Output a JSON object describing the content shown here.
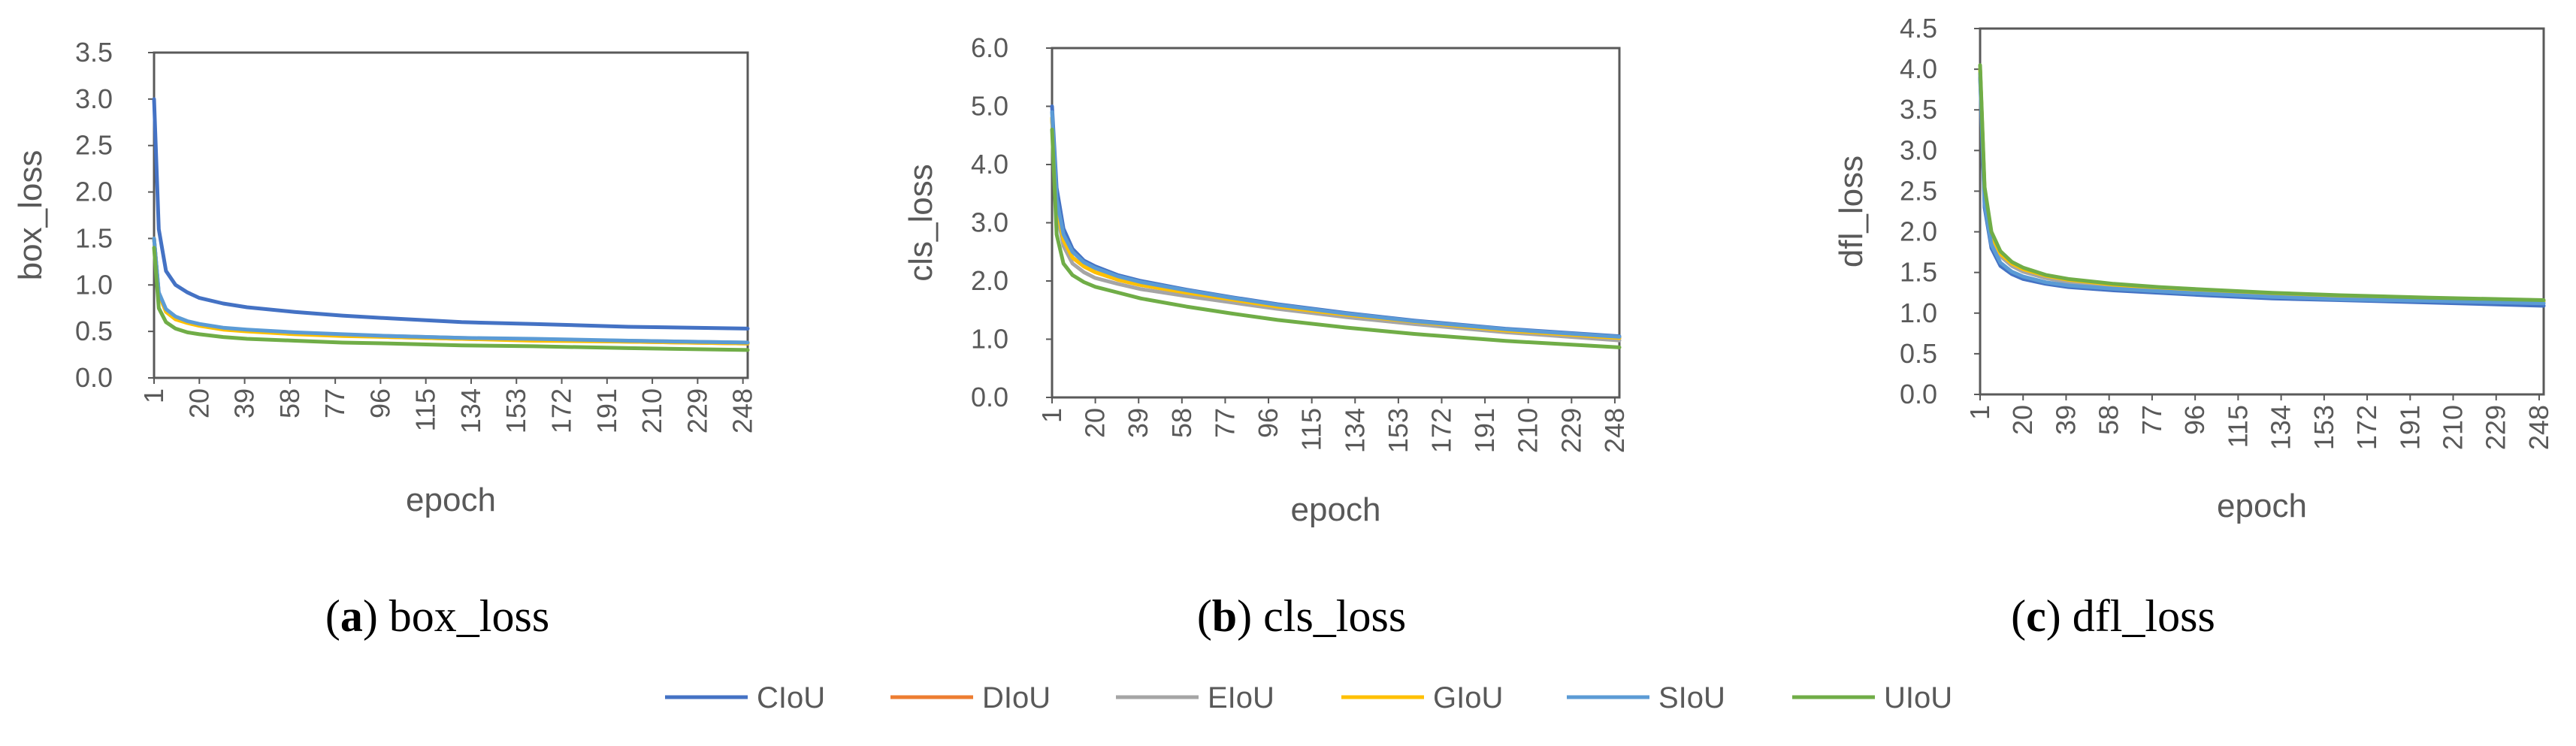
{
  "chart_data": [
    {
      "type": "line",
      "caption_letter": "a",
      "caption_text": "box_loss",
      "xlabel": "epoch",
      "ylabel": "box_loss",
      "ylim": [
        0,
        3.5
      ],
      "yticks": [
        "0.0",
        "0.5",
        "1.0",
        "1.5",
        "2.0",
        "2.5",
        "3.0",
        "3.5"
      ],
      "xlim": [
        1,
        250
      ],
      "xticks": [
        1,
        20,
        39,
        58,
        77,
        96,
        115,
        134,
        153,
        172,
        191,
        210,
        229,
        248
      ],
      "grid": false,
      "series": [
        {
          "name": "CIoU",
          "color": "#4472C4",
          "x": [
            1,
            3,
            6,
            10,
            15,
            20,
            30,
            40,
            60,
            80,
            100,
            130,
            160,
            200,
            250
          ],
          "values": [
            3.0,
            1.6,
            1.15,
            1.0,
            0.92,
            0.86,
            0.8,
            0.76,
            0.71,
            0.67,
            0.64,
            0.6,
            0.58,
            0.55,
            0.53
          ]
        },
        {
          "name": "DIoU",
          "color": "#ED7D31",
          "x": [
            1,
            3,
            6,
            10,
            15,
            20,
            30,
            40,
            60,
            80,
            100,
            130,
            160,
            200,
            250
          ],
          "values": [
            1.5,
            0.9,
            0.72,
            0.64,
            0.6,
            0.57,
            0.53,
            0.51,
            0.48,
            0.46,
            0.44,
            0.42,
            0.41,
            0.39,
            0.37
          ]
        },
        {
          "name": "EIoU",
          "color": "#A5A5A5",
          "x": [
            1,
            3,
            6,
            10,
            15,
            20,
            30,
            40,
            60,
            80,
            100,
            130,
            160,
            200,
            250
          ],
          "values": [
            1.5,
            0.92,
            0.73,
            0.65,
            0.6,
            0.57,
            0.53,
            0.51,
            0.48,
            0.46,
            0.45,
            0.43,
            0.41,
            0.4,
            0.38
          ]
        },
        {
          "name": "GIoU",
          "color": "#FFC000",
          "x": [
            1,
            3,
            6,
            10,
            15,
            20,
            30,
            40,
            60,
            80,
            100,
            130,
            160,
            200,
            250
          ],
          "values": [
            1.5,
            0.9,
            0.71,
            0.63,
            0.59,
            0.56,
            0.52,
            0.5,
            0.47,
            0.45,
            0.44,
            0.42,
            0.4,
            0.39,
            0.37
          ]
        },
        {
          "name": "SIoU",
          "color": "#5B9BD5",
          "x": [
            1,
            3,
            6,
            10,
            15,
            20,
            30,
            40,
            60,
            80,
            100,
            130,
            160,
            200,
            250
          ],
          "values": [
            1.5,
            0.92,
            0.74,
            0.66,
            0.61,
            0.58,
            0.54,
            0.52,
            0.49,
            0.47,
            0.45,
            0.43,
            0.42,
            0.4,
            0.38
          ]
        },
        {
          "name": "UIoU",
          "color": "#70AD47",
          "x": [
            1,
            3,
            6,
            10,
            15,
            20,
            30,
            40,
            60,
            80,
            100,
            130,
            160,
            200,
            250
          ],
          "values": [
            1.4,
            0.75,
            0.6,
            0.53,
            0.49,
            0.47,
            0.44,
            0.42,
            0.4,
            0.38,
            0.37,
            0.35,
            0.34,
            0.32,
            0.3
          ]
        }
      ]
    },
    {
      "type": "line",
      "caption_letter": "b",
      "caption_text": "cls_loss",
      "xlabel": "epoch",
      "ylabel": "cls_loss",
      "ylim": [
        0,
        6
      ],
      "yticks": [
        "0.0",
        "1.0",
        "2.0",
        "3.0",
        "4.0",
        "5.0",
        "6.0"
      ],
      "xlim": [
        1,
        250
      ],
      "xticks": [
        1,
        20,
        39,
        58,
        77,
        96,
        115,
        134,
        153,
        172,
        191,
        210,
        229,
        248
      ],
      "grid": false,
      "series": [
        {
          "name": "CIoU",
          "color": "#4472C4",
          "x": [
            1,
            3,
            6,
            10,
            15,
            20,
            30,
            40,
            60,
            80,
            100,
            130,
            160,
            200,
            250
          ],
          "values": [
            5.0,
            3.6,
            2.9,
            2.55,
            2.35,
            2.25,
            2.1,
            2.0,
            1.85,
            1.72,
            1.6,
            1.45,
            1.32,
            1.18,
            1.05
          ]
        },
        {
          "name": "DIoU",
          "color": "#ED7D31",
          "x": [
            1,
            3,
            6,
            10,
            15,
            20,
            30,
            40,
            60,
            80,
            100,
            130,
            160,
            200,
            250
          ],
          "values": [
            4.8,
            3.3,
            2.7,
            2.4,
            2.25,
            2.15,
            2.02,
            1.93,
            1.8,
            1.68,
            1.56,
            1.42,
            1.3,
            1.15,
            1.02
          ]
        },
        {
          "name": "EIoU",
          "color": "#A5A5A5",
          "x": [
            1,
            3,
            6,
            10,
            15,
            20,
            30,
            40,
            60,
            80,
            100,
            130,
            160,
            200,
            250
          ],
          "values": [
            4.8,
            3.2,
            2.6,
            2.3,
            2.15,
            2.05,
            1.95,
            1.86,
            1.74,
            1.63,
            1.52,
            1.38,
            1.26,
            1.12,
            0.98
          ]
        },
        {
          "name": "GIoU",
          "color": "#FFC000",
          "x": [
            1,
            3,
            6,
            10,
            15,
            20,
            30,
            40,
            60,
            80,
            100,
            130,
            160,
            200,
            250
          ],
          "values": [
            4.8,
            3.3,
            2.7,
            2.4,
            2.25,
            2.15,
            2.02,
            1.93,
            1.8,
            1.68,
            1.56,
            1.42,
            1.3,
            1.15,
            1.02
          ]
        },
        {
          "name": "SIoU",
          "color": "#5B9BD5",
          "x": [
            1,
            3,
            6,
            10,
            15,
            20,
            30,
            40,
            60,
            80,
            100,
            130,
            160,
            200,
            250
          ],
          "values": [
            4.9,
            3.4,
            2.8,
            2.5,
            2.32,
            2.22,
            2.08,
            1.98,
            1.84,
            1.71,
            1.59,
            1.44,
            1.31,
            1.17,
            1.04
          ]
        },
        {
          "name": "UIoU",
          "color": "#70AD47",
          "x": [
            1,
            3,
            6,
            10,
            15,
            20,
            30,
            40,
            60,
            80,
            100,
            130,
            160,
            200,
            250
          ],
          "values": [
            4.6,
            2.8,
            2.3,
            2.1,
            1.98,
            1.9,
            1.8,
            1.7,
            1.56,
            1.44,
            1.33,
            1.2,
            1.09,
            0.97,
            0.86
          ]
        }
      ]
    },
    {
      "type": "line",
      "caption_letter": "c",
      "caption_text": "dfl_loss",
      "xlabel": "epoch",
      "ylabel": "dfl_loss",
      "ylim": [
        0,
        4.5
      ],
      "yticks": [
        "0.0",
        "0.5",
        "1.0",
        "1.5",
        "2.0",
        "2.5",
        "3.0",
        "3.5",
        "4.0",
        "4.5"
      ],
      "xlim": [
        1,
        250
      ],
      "xticks": [
        1,
        20,
        39,
        58,
        77,
        96,
        115,
        134,
        153,
        172,
        191,
        210,
        229,
        248
      ],
      "grid": false,
      "series": [
        {
          "name": "CIoU",
          "color": "#4472C4",
          "x": [
            1,
            3,
            6,
            10,
            15,
            20,
            30,
            40,
            60,
            80,
            100,
            130,
            160,
            200,
            250
          ],
          "values": [
            3.9,
            2.3,
            1.8,
            1.58,
            1.48,
            1.42,
            1.36,
            1.32,
            1.28,
            1.25,
            1.22,
            1.18,
            1.16,
            1.13,
            1.09
          ]
        },
        {
          "name": "DIoU",
          "color": "#ED7D31",
          "x": [
            1,
            3,
            6,
            10,
            15,
            20,
            30,
            40,
            60,
            80,
            100,
            130,
            160,
            200,
            250
          ],
          "values": [
            4.0,
            2.5,
            1.95,
            1.72,
            1.6,
            1.53,
            1.45,
            1.4,
            1.34,
            1.3,
            1.27,
            1.23,
            1.2,
            1.18,
            1.15
          ]
        },
        {
          "name": "EIoU",
          "color": "#A5A5A5",
          "x": [
            1,
            3,
            6,
            10,
            15,
            20,
            30,
            40,
            60,
            80,
            100,
            130,
            160,
            200,
            250
          ],
          "values": [
            4.0,
            2.45,
            1.92,
            1.7,
            1.58,
            1.51,
            1.43,
            1.38,
            1.32,
            1.29,
            1.26,
            1.22,
            1.19,
            1.17,
            1.14
          ]
        },
        {
          "name": "GIoU",
          "color": "#FFC000",
          "x": [
            1,
            3,
            6,
            10,
            15,
            20,
            30,
            40,
            60,
            80,
            100,
            130,
            160,
            200,
            250
          ],
          "values": [
            4.0,
            2.5,
            1.96,
            1.73,
            1.61,
            1.54,
            1.46,
            1.41,
            1.35,
            1.31,
            1.28,
            1.24,
            1.21,
            1.18,
            1.15
          ]
        },
        {
          "name": "SIoU",
          "color": "#5B9BD5",
          "x": [
            1,
            3,
            6,
            10,
            15,
            20,
            30,
            40,
            60,
            80,
            100,
            130,
            160,
            200,
            250
          ],
          "values": [
            3.95,
            2.35,
            1.84,
            1.62,
            1.51,
            1.45,
            1.38,
            1.34,
            1.3,
            1.27,
            1.24,
            1.2,
            1.17,
            1.15,
            1.12
          ]
        },
        {
          "name": "UIoU",
          "color": "#70AD47",
          "x": [
            1,
            3,
            6,
            10,
            15,
            20,
            30,
            40,
            60,
            80,
            100,
            130,
            160,
            200,
            250
          ],
          "values": [
            4.05,
            2.55,
            2.0,
            1.76,
            1.63,
            1.56,
            1.47,
            1.42,
            1.36,
            1.32,
            1.29,
            1.25,
            1.22,
            1.19,
            1.16
          ]
        }
      ]
    }
  ],
  "legend": {
    "position": "bottom-center",
    "items": [
      {
        "name": "CIoU",
        "color": "#4472C4"
      },
      {
        "name": "DIoU",
        "color": "#ED7D31"
      },
      {
        "name": "EIoU",
        "color": "#A5A5A5"
      },
      {
        "name": "GIoU",
        "color": "#FFC000"
      },
      {
        "name": "SIoU",
        "color": "#5B9BD5"
      },
      {
        "name": "UIoU",
        "color": "#70AD47"
      }
    ]
  }
}
